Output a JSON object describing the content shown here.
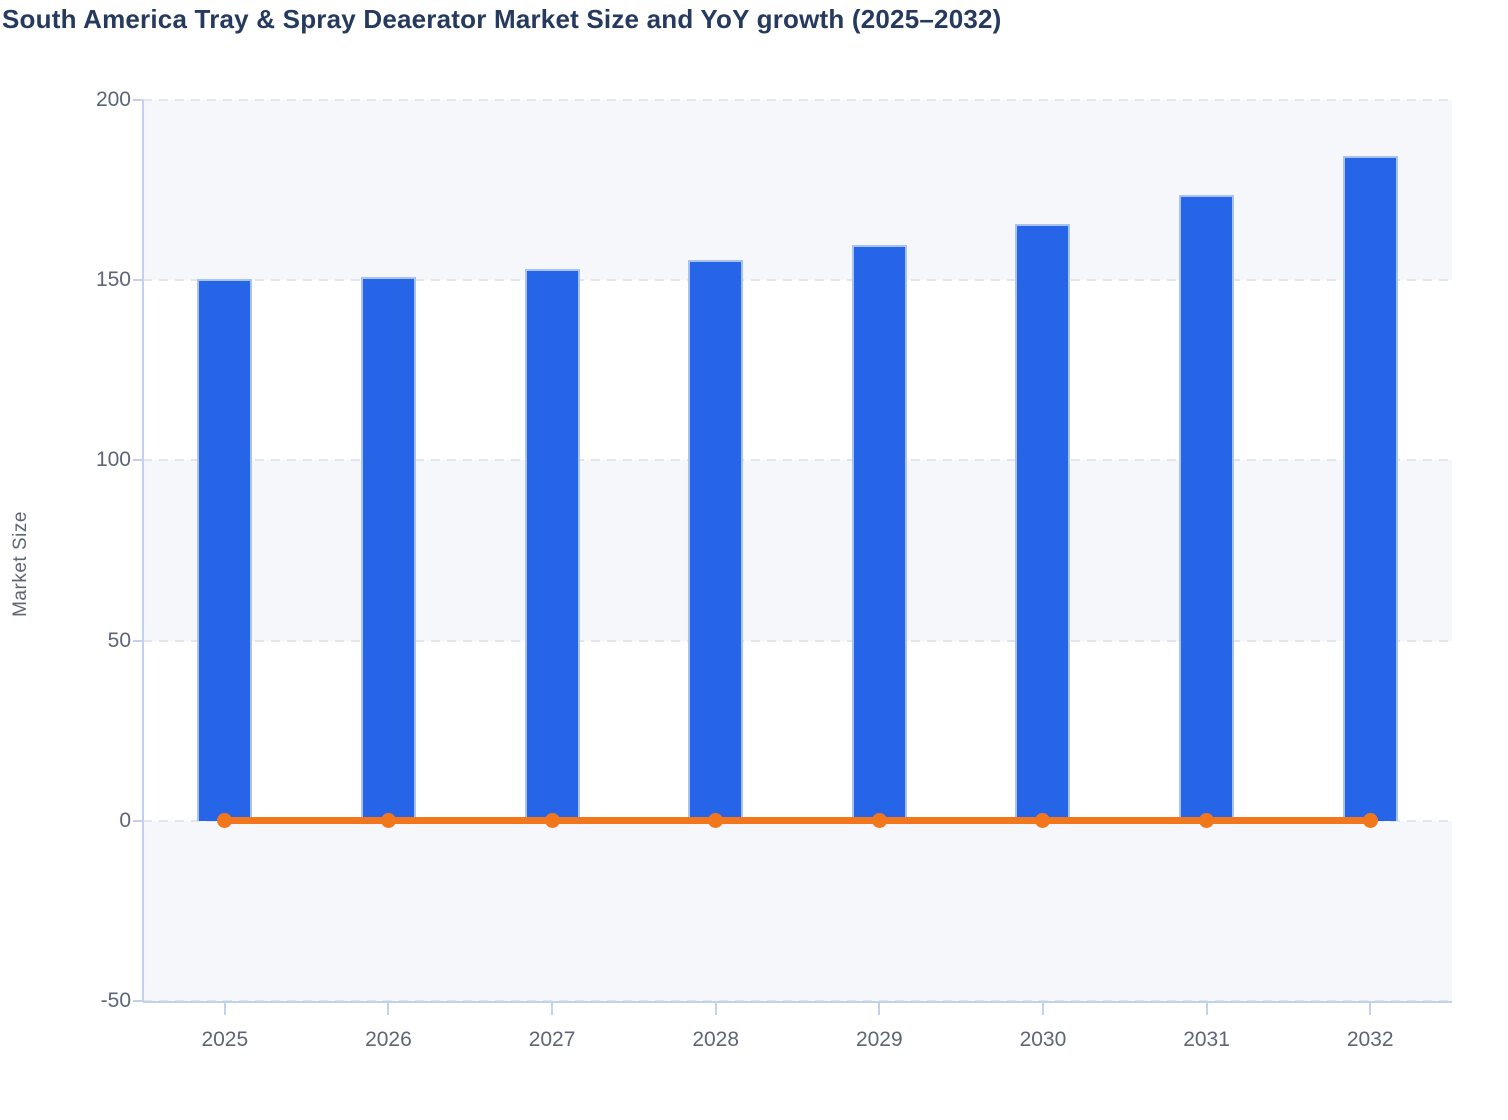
{
  "title": "South America Tray & Spray Deaerator Market Size and YoY growth (2025–2032)",
  "chart_data": {
    "type": "bar",
    "title": "South America Tray & Spray Deaerator Market Size and YoY growth (2025–2032)",
    "categories": [
      "2025",
      "2026",
      "2027",
      "2028",
      "2029",
      "2030",
      "2031",
      "2032"
    ],
    "series": [
      {
        "name": "Market Size",
        "type": "bar",
        "color": "#2765e8",
        "border_color": "#a8c2f2",
        "values": [
          150.3,
          151.0,
          153.0,
          155.5,
          159.8,
          165.6,
          173.6,
          184.5
        ]
      },
      {
        "name": "YoY growth",
        "type": "line",
        "color": "#f2771c",
        "values": [
          0,
          0,
          0,
          0,
          0,
          0,
          0,
          0
        ]
      }
    ],
    "xlabel": "",
    "ylabel": "Market Size",
    "ylim": [
      -50,
      200
    ],
    "yticks": [
      200,
      150,
      100,
      50,
      0,
      -50
    ],
    "y_tick_labels": [
      "200",
      "150",
      "100",
      "50",
      "0",
      "-50"
    ],
    "grid": "horizontal-dashed",
    "background_bands": "alternating 50-unit horizontal bands",
    "legend_position": "none"
  },
  "colors": {
    "title_text": "#253a5e",
    "axis_text": "#5d6576",
    "axis_line": "#c3d0ee",
    "gridline": "#e3e5ec",
    "band": "#f6f7fa",
    "background": "#ffffff"
  }
}
